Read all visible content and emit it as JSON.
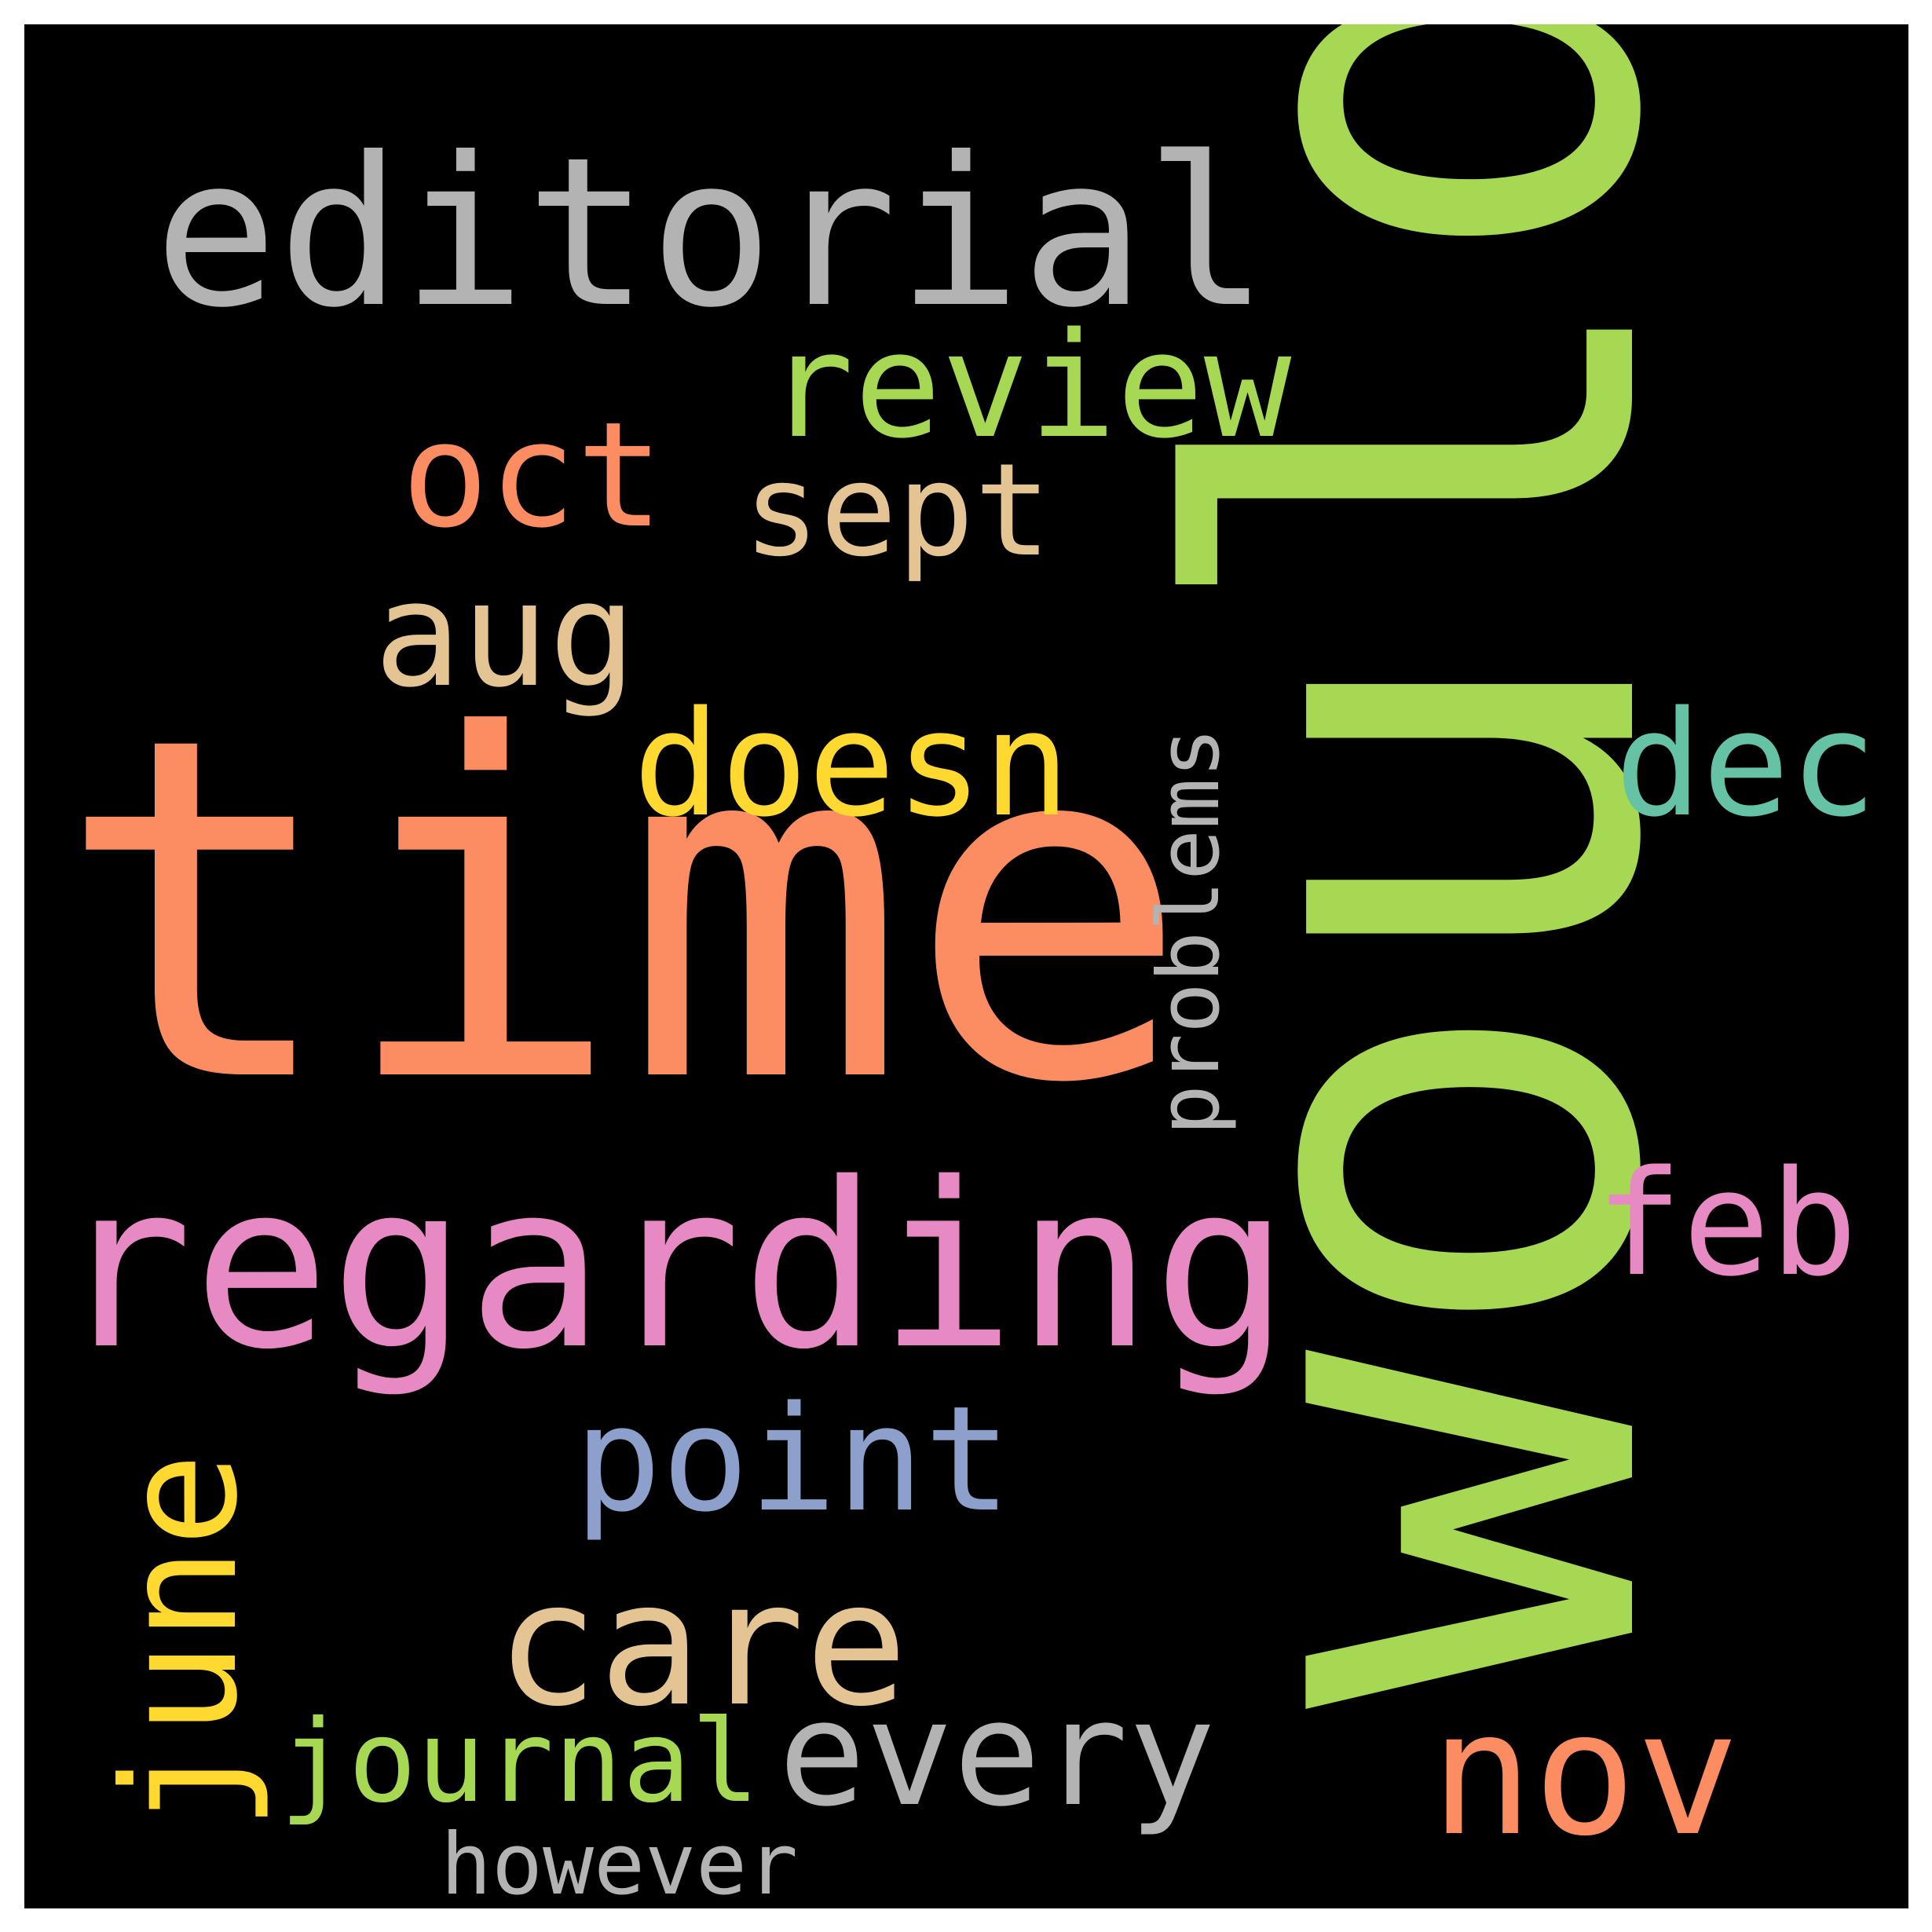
{
  "background_color": "#000000",
  "words": [
    {
      "text": "would",
      "color": "#A6D854",
      "orientation": "vertical"
    },
    {
      "text": "time",
      "color": "#FC8D62",
      "orientation": "horizontal"
    },
    {
      "text": "regarding",
      "color": "#E78AC3",
      "orientation": "horizontal"
    },
    {
      "text": "editorial",
      "color": "#B3B3B3",
      "orientation": "horizontal"
    },
    {
      "text": "review",
      "color": "#A6D854",
      "orientation": "horizontal"
    },
    {
      "text": "oct",
      "color": "#FC8D62",
      "orientation": "horizontal"
    },
    {
      "text": "sept",
      "color": "#E5C494",
      "orientation": "horizontal"
    },
    {
      "text": "aug",
      "color": "#E5C494",
      "orientation": "horizontal"
    },
    {
      "text": "doesn",
      "color": "#FFD92F",
      "orientation": "horizontal"
    },
    {
      "text": "dec",
      "color": "#66C2A5",
      "orientation": "horizontal"
    },
    {
      "text": "problems",
      "color": "#B3B3B3",
      "orientation": "vertical"
    },
    {
      "text": "feb",
      "color": "#E78AC3",
      "orientation": "horizontal"
    },
    {
      "text": "point",
      "color": "#8DA0CB",
      "orientation": "horizontal"
    },
    {
      "text": "care",
      "color": "#E5C494",
      "orientation": "horizontal"
    },
    {
      "text": "june",
      "color": "#FFD92F",
      "orientation": "vertical"
    },
    {
      "text": "journal",
      "color": "#A6D854",
      "orientation": "horizontal"
    },
    {
      "text": "every",
      "color": "#B3B3B3",
      "orientation": "horizontal"
    },
    {
      "text": "nov",
      "color": "#FC8D62",
      "orientation": "horizontal"
    },
    {
      "text": "however",
      "color": "#B3B3B3",
      "orientation": "horizontal"
    }
  ]
}
